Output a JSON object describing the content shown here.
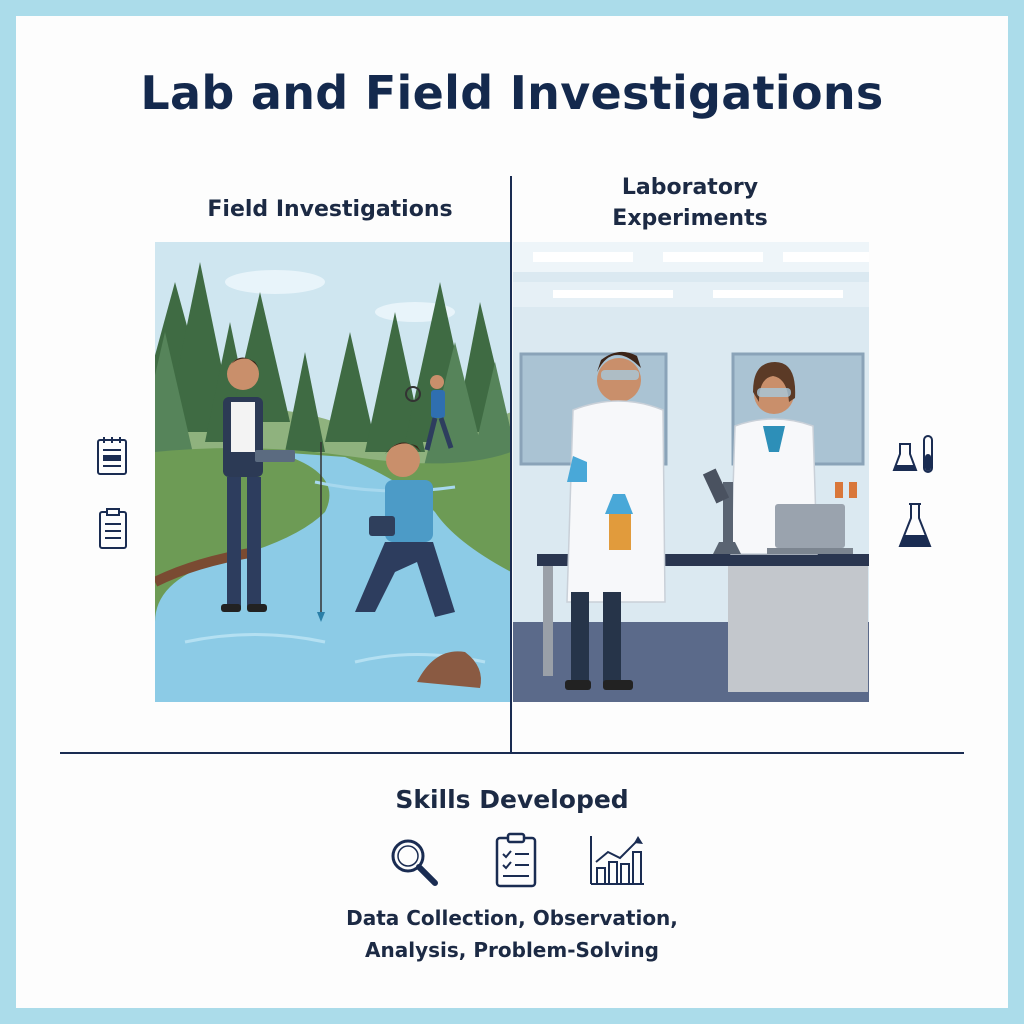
{
  "title": "Lab and Field Investigations",
  "field": {
    "heading": "Field Investigations"
  },
  "lab": {
    "heading_line1": "Laboratory",
    "heading_line2": "Experiments"
  },
  "skills": {
    "heading": "Skills Developed",
    "line1": "Data Collection, Observation,",
    "line2": "Analysis, Problem-Solving",
    "icons": [
      "magnifier-icon",
      "checklist-clipboard-icon",
      "bar-chart-trend-icon"
    ]
  },
  "side_icons": {
    "left": [
      "notebook-icon",
      "clipboard-icon"
    ],
    "right": [
      "flask-test-tube-icon",
      "erlenmeyer-flask-icon"
    ]
  },
  "colors": {
    "border": "#abdcea",
    "title": "#14294d",
    "water": "#8ccbe6",
    "forest": "#4f7a4c",
    "lab_wall": "#dbe9f1"
  }
}
